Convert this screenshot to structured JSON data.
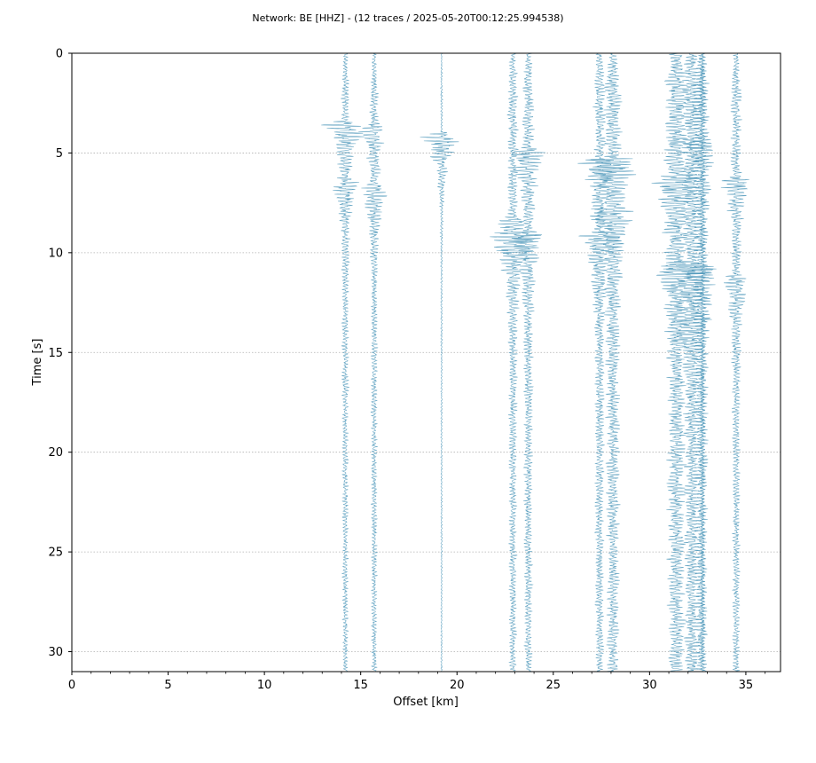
{
  "chart_data": {
    "type": "line",
    "title": "Network: BE [HHZ] - (12 traces / 2025-05-20T00:12:25.994538)",
    "xlabel": "Offset [km]",
    "ylabel": "Time [s]",
    "xlim": [
      0,
      36.8
    ],
    "ylim": [
      31,
      0
    ],
    "y_inverted": true,
    "grid": "horizontal-dotted",
    "xticks": [
      0,
      5,
      10,
      15,
      20,
      25,
      30,
      35
    ],
    "yticks": [
      0,
      5,
      10,
      15,
      20,
      25,
      30
    ],
    "trace_color": "#4a95b8",
    "series": [
      {
        "offset_km": 14.2,
        "amplitude_km": 0.35,
        "events": [
          {
            "t": 3.6,
            "amp_km": 1.9
          },
          {
            "t": 6.5,
            "amp_km": 0.9
          }
        ]
      },
      {
        "offset_km": 15.7,
        "amplitude_km": 0.35,
        "events": [
          {
            "t": 3.8,
            "amp_km": 1.0
          },
          {
            "t": 6.8,
            "amp_km": 1.0
          }
        ]
      },
      {
        "offset_km": 19.2,
        "amplitude_km": 0.1,
        "events": [
          {
            "t": 4.2,
            "amp_km": 1.9
          }
        ]
      },
      {
        "offset_km": 22.9,
        "amplitude_km": 0.45,
        "events": [
          {
            "t": 8.4,
            "amp_km": 1.5
          },
          {
            "t": 9.1,
            "amp_km": 1.9
          }
        ]
      },
      {
        "offset_km": 23.7,
        "amplitude_km": 0.5,
        "events": [
          {
            "t": 5.0,
            "amp_km": 1.3
          },
          {
            "t": 9.2,
            "amp_km": 1.2
          }
        ]
      },
      {
        "offset_km": 27.4,
        "amplitude_km": 0.5,
        "events": [
          {
            "t": 5.5,
            "amp_km": 1.4
          },
          {
            "t": 9.2,
            "amp_km": 1.9
          }
        ]
      },
      {
        "offset_km": 28.1,
        "amplitude_km": 0.75,
        "events": [
          {
            "t": 5.4,
            "amp_km": 1.9
          },
          {
            "t": 7.9,
            "amp_km": 1.6
          }
        ]
      },
      {
        "offset_km": 31.4,
        "amplitude_km": 1.05,
        "events": [
          {
            "t": 6.3,
            "amp_km": 1.7
          },
          {
            "t": 10.8,
            "amp_km": 1.6
          }
        ]
      },
      {
        "offset_km": 32.2,
        "amplitude_km": 0.9,
        "events": [
          {
            "t": 10.7,
            "amp_km": 1.5
          },
          {
            "t": 13.3,
            "amp_km": 1.0
          }
        ]
      },
      {
        "offset_km": 32.7,
        "amplitude_km": 0.7,
        "events": [
          {
            "t": 4.6,
            "amp_km": 0.9
          },
          {
            "t": 10.9,
            "amp_km": 1.4
          }
        ]
      },
      {
        "offset_km": 32.75,
        "amplitude_km": 0.3,
        "events": []
      },
      {
        "offset_km": 34.5,
        "amplitude_km": 0.45,
        "events": [
          {
            "t": 6.4,
            "amp_km": 1.1
          },
          {
            "t": 11.3,
            "amp_km": 1.1
          }
        ]
      }
    ]
  }
}
